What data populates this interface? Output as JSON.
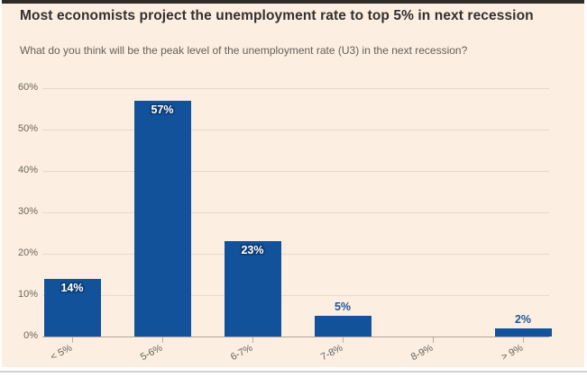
{
  "header": {
    "title": "Most economists project the unemployment rate to top 5% in next recession",
    "subtitle": "What do you think will be the peak level of the unemployment rate (U3) in the next recession?"
  },
  "chart_data": {
    "type": "bar",
    "title": "Most economists project the unemployment rate to top 5% in next recession",
    "subtitle": "What do you think will be the peak level of the unemployment rate (U3) in the next recession?",
    "categories": [
      "< 5%",
      "5-6%",
      "6-7%",
      "7-8%",
      "8-9%",
      "> 9%"
    ],
    "values": [
      14,
      57,
      23,
      5,
      0,
      2
    ],
    "bar_labels": [
      "14%",
      "57%",
      "23%",
      "5%",
      "",
      "2%"
    ],
    "y_tick_labels": [
      "0%",
      "10%",
      "20%",
      "30%",
      "40%",
      "50%",
      "60%"
    ],
    "ylim": [
      0,
      60
    ],
    "xlabel": "",
    "ylabel": "",
    "grid": "horizontal-only",
    "legend": "none",
    "colors": {
      "bar": "#11529B",
      "card_background": "#FCEFE2",
      "label_inside_text": "#FFFFFF",
      "label_inside_outline": "#0D3B72",
      "label_outside_text": "#1F559C",
      "axis_text": "#6E655B",
      "title_text": "#33302C",
      "top_rule": "#2E2C29",
      "gridline": "#E7DACB",
      "baseline": "#B3A698"
    }
  }
}
